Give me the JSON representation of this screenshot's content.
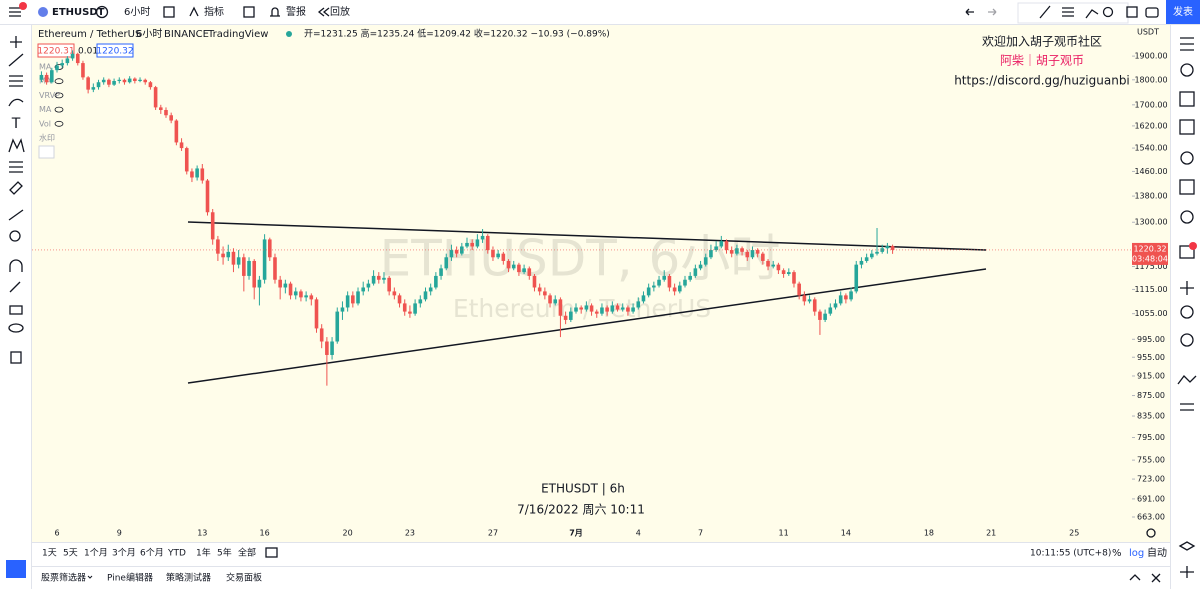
{
  "ui": {
    "symbol": "ETHUSDT",
    "interval": "6小时",
    "indicators": "指标",
    "alerts": "警报",
    "replay": "回放",
    "publish": "发表",
    "legend_name": "Ethereum / TetherUS",
    "legend_interval": "6小时",
    "legend_exchange": "BINANCE",
    "legend_source": "TradingView",
    "legend_ohlc": "开=1231.25 高=1235.24 低=1209.42 收=1220.32 −10.93 (−0.89%)",
    "bid": "1220.31",
    "spread": "0.01",
    "ask": "1220.32",
    "studies": [
      "MA",
      "MA",
      "VRVP",
      "MA",
      "Vol",
      "水印"
    ],
    "community": [
      "欢迎加入胡子观币社区",
      "阿柴｜胡子观币",
      "https://discord.gg/huziguanbi"
    ],
    "watermark": [
      "ETHUSDT, 6小时",
      "Ethereum / TetherUS"
    ],
    "stamp": [
      "ETHUSDT | 6h",
      "7/16/2022 周六 10:11"
    ],
    "currency": "USDT",
    "countdown": "03:48:04",
    "ranges": [
      "1天",
      "5天",
      "1个月",
      "3个月",
      "6个月",
      "YTD",
      "1年",
      "5年",
      "全部"
    ],
    "clock": "10:11:55 (UTC+8)",
    "percent": "%",
    "log": "log",
    "auto": "自动",
    "tabs": [
      "股票筛选器",
      "Pine编辑器",
      "策略测试器",
      "交易面板"
    ]
  },
  "chart_data": {
    "type": "candlestick",
    "log": true,
    "grid": false,
    "up_color": "#26a69a",
    "down_color": "#ef5350",
    "ylim": [
      651,
      2040
    ],
    "yticks": [
      {
        "value": 1900,
        "label": "1900.00"
      },
      {
        "value": 1800,
        "label": "1800.00"
      },
      {
        "value": 1700,
        "label": "1700.00"
      },
      {
        "value": 1620,
        "label": "1620.00"
      },
      {
        "value": 1540,
        "label": "1540.00"
      },
      {
        "value": 1460,
        "label": "1460.00"
      },
      {
        "value": 1380,
        "label": "1380.00"
      },
      {
        "value": 1300,
        "label": "1300.00"
      },
      {
        "value": 1175,
        "label": "1175.00"
      },
      {
        "value": 1115,
        "label": "1115.00"
      },
      {
        "value": 1055,
        "label": "1055.00"
      },
      {
        "value": 995,
        "label": "995.00"
      },
      {
        "value": 955,
        "label": "955.00"
      },
      {
        "value": 915,
        "label": "915.00"
      },
      {
        "value": 875,
        "label": "875.00"
      },
      {
        "value": 835,
        "label": "835.00"
      },
      {
        "value": 795,
        "label": "795.00"
      },
      {
        "value": 755,
        "label": "755.00"
      },
      {
        "value": 723,
        "label": "723.00"
      },
      {
        "value": 691,
        "label": "691.00"
      },
      {
        "value": 663,
        "label": "663.00"
      }
    ],
    "categories": [
      null,
      null,
      null,
      "6",
      null,
      null,
      null,
      null,
      null,
      null,
      null,
      null,
      null,
      null,
      null,
      "9",
      null,
      null,
      null,
      null,
      null,
      null,
      null,
      null,
      null,
      null,
      null,
      null,
      null,
      null,
      null,
      "13",
      null,
      null,
      null,
      null,
      null,
      null,
      null,
      null,
      null,
      null,
      null,
      "16",
      null,
      null,
      null,
      null,
      null,
      null,
      null,
      null,
      null,
      null,
      null,
      null,
      null,
      null,
      null,
      "20",
      null,
      null,
      null,
      null,
      null,
      null,
      null,
      null,
      null,
      null,
      null,
      "23",
      null,
      null,
      null,
      null,
      null,
      null,
      null,
      null,
      null,
      null,
      null,
      null,
      null,
      null,
      null,
      "27",
      null,
      null,
      null,
      null,
      null,
      null,
      null,
      null,
      null,
      null,
      null,
      null,
      null,
      null,
      null,
      "7月",
      null,
      null,
      null,
      null,
      null,
      null,
      null,
      null,
      null,
      null,
      null,
      "4",
      null,
      null,
      null,
      null,
      null,
      null,
      null,
      null,
      null,
      null,
      null,
      "7",
      null,
      null,
      null,
      null,
      null,
      null,
      null,
      null,
      null,
      null,
      null,
      null,
      null,
      null,
      null,
      "11",
      null,
      null,
      null,
      null,
      null,
      null,
      null,
      null,
      null,
      null,
      null,
      "14",
      null,
      null,
      null,
      null,
      null,
      null,
      null,
      null,
      null,
      null,
      null,
      null,
      null,
      null,
      null,
      "18",
      null,
      null,
      null,
      null,
      null,
      null,
      null,
      null,
      null,
      null,
      null,
      "21",
      null,
      null,
      null,
      null,
      null,
      null,
      null,
      null,
      null,
      null,
      null,
      null,
      null,
      null,
      null,
      "25"
    ],
    "ohlc": [
      [
        1800,
        1835,
        1790,
        1820
      ],
      [
        1820,
        1830,
        1780,
        1790
      ],
      [
        1790,
        1850,
        1785,
        1840
      ],
      [
        1840,
        1875,
        1830,
        1860
      ],
      [
        1860,
        1885,
        1850,
        1870
      ],
      [
        1870,
        1900,
        1860,
        1890
      ],
      [
        1890,
        1925,
        1880,
        1910
      ],
      [
        1910,
        1915,
        1860,
        1870
      ],
      [
        1870,
        1880,
        1800,
        1810
      ],
      [
        1810,
        1815,
        1745,
        1760
      ],
      [
        1760,
        1785,
        1750,
        1770
      ],
      [
        1770,
        1800,
        1760,
        1790
      ],
      [
        1790,
        1810,
        1780,
        1800
      ],
      [
        1800,
        1805,
        1770,
        1780
      ],
      [
        1780,
        1805,
        1775,
        1795
      ],
      [
        1795,
        1810,
        1785,
        1800
      ],
      [
        1800,
        1805,
        1780,
        1790
      ],
      [
        1790,
        1815,
        1785,
        1805
      ],
      [
        1805,
        1810,
        1785,
        1795
      ],
      [
        1795,
        1810,
        1790,
        1800
      ],
      [
        1800,
        1805,
        1780,
        1790
      ],
      [
        1790,
        1795,
        1760,
        1770
      ],
      [
        1770,
        1775,
        1680,
        1690
      ],
      [
        1690,
        1700,
        1665,
        1680
      ],
      [
        1680,
        1690,
        1650,
        1660
      ],
      [
        1660,
        1670,
        1630,
        1640
      ],
      [
        1640,
        1645,
        1550,
        1560
      ],
      [
        1560,
        1575,
        1530,
        1540
      ],
      [
        1540,
        1545,
        1450,
        1460
      ],
      [
        1460,
        1470,
        1425,
        1440
      ],
      [
        1440,
        1480,
        1430,
        1470
      ],
      [
        1470,
        1485,
        1420,
        1430
      ],
      [
        1430,
        1435,
        1320,
        1330
      ],
      [
        1330,
        1340,
        1235,
        1250
      ],
      [
        1250,
        1260,
        1190,
        1210
      ],
      [
        1210,
        1230,
        1180,
        1200
      ],
      [
        1200,
        1235,
        1190,
        1215
      ],
      [
        1215,
        1225,
        1160,
        1180
      ],
      [
        1180,
        1220,
        1170,
        1200
      ],
      [
        1200,
        1210,
        1110,
        1150
      ],
      [
        1150,
        1200,
        1140,
        1190
      ],
      [
        1190,
        1195,
        1090,
        1120
      ],
      [
        1120,
        1150,
        1075,
        1140
      ],
      [
        1140,
        1265,
        1130,
        1250
      ],
      [
        1250,
        1255,
        1190,
        1200
      ],
      [
        1200,
        1210,
        1130,
        1140
      ],
      [
        1140,
        1150,
        1090,
        1120
      ],
      [
        1120,
        1140,
        1105,
        1130
      ],
      [
        1130,
        1135,
        1090,
        1100
      ],
      [
        1100,
        1120,
        1090,
        1110
      ],
      [
        1110,
        1115,
        1085,
        1095
      ],
      [
        1095,
        1110,
        1085,
        1100
      ],
      [
        1100,
        1105,
        1075,
        1090
      ],
      [
        1090,
        1095,
        1010,
        1020
      ],
      [
        1020,
        1030,
        975,
        990
      ],
      [
        990,
        1000,
        895,
        960
      ],
      [
        960,
        1000,
        950,
        990
      ],
      [
        990,
        1070,
        985,
        1060
      ],
      [
        1060,
        1085,
        1040,
        1070
      ],
      [
        1070,
        1110,
        1060,
        1100
      ],
      [
        1100,
        1110,
        1070,
        1080
      ],
      [
        1080,
        1120,
        1075,
        1110
      ],
      [
        1110,
        1135,
        1100,
        1120
      ],
      [
        1120,
        1140,
        1110,
        1130
      ],
      [
        1130,
        1165,
        1125,
        1150
      ],
      [
        1150,
        1160,
        1130,
        1140
      ],
      [
        1140,
        1160,
        1130,
        1145
      ],
      [
        1145,
        1150,
        1100,
        1110
      ],
      [
        1110,
        1120,
        1090,
        1100
      ],
      [
        1100,
        1105,
        1070,
        1080
      ],
      [
        1080,
        1090,
        1050,
        1060
      ],
      [
        1060,
        1075,
        1045,
        1055
      ],
      [
        1055,
        1090,
        1050,
        1080
      ],
      [
        1080,
        1100,
        1070,
        1090
      ],
      [
        1090,
        1120,
        1085,
        1110
      ],
      [
        1110,
        1130,
        1100,
        1120
      ],
      [
        1120,
        1160,
        1115,
        1150
      ],
      [
        1150,
        1180,
        1140,
        1170
      ],
      [
        1170,
        1210,
        1165,
        1200
      ],
      [
        1200,
        1235,
        1190,
        1220
      ],
      [
        1220,
        1230,
        1200,
        1210
      ],
      [
        1210,
        1240,
        1205,
        1230
      ],
      [
        1230,
        1255,
        1225,
        1240
      ],
      [
        1240,
        1250,
        1220,
        1230
      ],
      [
        1230,
        1265,
        1225,
        1250
      ],
      [
        1250,
        1280,
        1240,
        1260
      ],
      [
        1260,
        1265,
        1210,
        1220
      ],
      [
        1220,
        1230,
        1190,
        1200
      ],
      [
        1200,
        1220,
        1195,
        1210
      ],
      [
        1210,
        1215,
        1180,
        1190
      ],
      [
        1190,
        1195,
        1160,
        1170
      ],
      [
        1170,
        1190,
        1165,
        1180
      ],
      [
        1180,
        1185,
        1150,
        1160
      ],
      [
        1160,
        1180,
        1155,
        1170
      ],
      [
        1170,
        1175,
        1140,
        1150
      ],
      [
        1150,
        1155,
        1110,
        1120
      ],
      [
        1120,
        1130,
        1100,
        1110
      ],
      [
        1110,
        1120,
        1090,
        1100
      ],
      [
        1100,
        1105,
        1070,
        1080
      ],
      [
        1080,
        1100,
        1075,
        1090
      ],
      [
        1090,
        1095,
        1000,
        1050
      ],
      [
        1050,
        1060,
        1030,
        1040
      ],
      [
        1040,
        1070,
        1035,
        1060
      ],
      [
        1060,
        1080,
        1055,
        1070
      ],
      [
        1070,
        1075,
        1055,
        1065
      ],
      [
        1065,
        1085,
        1060,
        1075
      ],
      [
        1075,
        1080,
        1050,
        1060
      ],
      [
        1060,
        1065,
        1045,
        1055
      ],
      [
        1055,
        1080,
        1050,
        1070
      ],
      [
        1070,
        1075,
        1050,
        1060
      ],
      [
        1060,
        1085,
        1055,
        1075
      ],
      [
        1075,
        1080,
        1060,
        1065
      ],
      [
        1065,
        1080,
        1060,
        1070
      ],
      [
        1070,
        1075,
        1050,
        1060
      ],
      [
        1060,
        1080,
        1055,
        1070
      ],
      [
        1070,
        1095,
        1065,
        1085
      ],
      [
        1085,
        1110,
        1080,
        1100
      ],
      [
        1100,
        1130,
        1095,
        1120
      ],
      [
        1120,
        1135,
        1110,
        1125
      ],
      [
        1125,
        1150,
        1120,
        1140
      ],
      [
        1140,
        1165,
        1135,
        1150
      ],
      [
        1150,
        1155,
        1110,
        1120
      ],
      [
        1120,
        1130,
        1100,
        1110
      ],
      [
        1110,
        1135,
        1105,
        1125
      ],
      [
        1125,
        1150,
        1120,
        1140
      ],
      [
        1140,
        1160,
        1135,
        1150
      ],
      [
        1150,
        1180,
        1145,
        1170
      ],
      [
        1170,
        1190,
        1165,
        1180
      ],
      [
        1180,
        1210,
        1175,
        1200
      ],
      [
        1200,
        1235,
        1195,
        1220
      ],
      [
        1220,
        1245,
        1215,
        1230
      ],
      [
        1230,
        1260,
        1225,
        1245
      ],
      [
        1245,
        1250,
        1210,
        1220
      ],
      [
        1220,
        1230,
        1200,
        1210
      ],
      [
        1210,
        1235,
        1205,
        1225
      ],
      [
        1225,
        1230,
        1205,
        1215
      ],
      [
        1215,
        1220,
        1190,
        1200
      ],
      [
        1200,
        1230,
        1195,
        1220
      ],
      [
        1220,
        1225,
        1200,
        1210
      ],
      [
        1210,
        1215,
        1180,
        1190
      ],
      [
        1190,
        1195,
        1165,
        1175
      ],
      [
        1175,
        1190,
        1170,
        1180
      ],
      [
        1180,
        1185,
        1155,
        1165
      ],
      [
        1165,
        1170,
        1145,
        1155
      ],
      [
        1155,
        1170,
        1150,
        1160
      ],
      [
        1160,
        1165,
        1120,
        1130
      ],
      [
        1130,
        1135,
        1090,
        1100
      ],
      [
        1100,
        1110,
        1075,
        1085
      ],
      [
        1085,
        1100,
        1080,
        1090
      ],
      [
        1090,
        1095,
        1050,
        1060
      ],
      [
        1060,
        1065,
        1005,
        1040
      ],
      [
        1040,
        1065,
        1035,
        1055
      ],
      [
        1055,
        1080,
        1050,
        1070
      ],
      [
        1070,
        1090,
        1065,
        1080
      ],
      [
        1080,
        1110,
        1075,
        1100
      ],
      [
        1100,
        1105,
        1080,
        1090
      ],
      [
        1090,
        1120,
        1085,
        1110
      ],
      [
        1110,
        1190,
        1105,
        1180
      ],
      [
        1180,
        1200,
        1170,
        1190
      ],
      [
        1190,
        1210,
        1185,
        1200
      ],
      [
        1200,
        1220,
        1195,
        1210
      ],
      [
        1210,
        1283,
        1205,
        1215
      ],
      [
        1215,
        1235,
        1210,
        1225
      ],
      [
        1225,
        1240,
        1210,
        1231.25
      ],
      [
        1231.25,
        1235.24,
        1209.42,
        1220.32
      ],
      null,
      null,
      null,
      null,
      null,
      null,
      null,
      null,
      null,
      null,
      null,
      null,
      null,
      null,
      null,
      null,
      null,
      null,
      null,
      null,
      null,
      null,
      null,
      null,
      null,
      null,
      null,
      null,
      null,
      null,
      null,
      null,
      null,
      null,
      null
    ]
  }
}
